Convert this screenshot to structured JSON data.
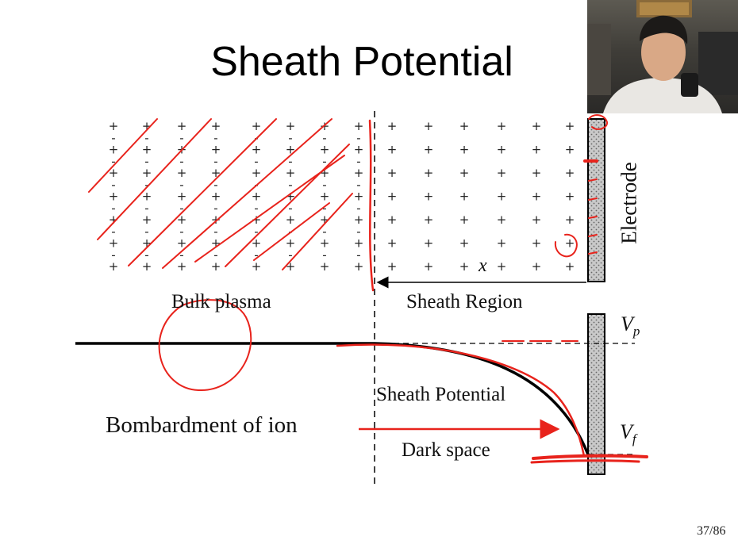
{
  "slide": {
    "title": "Sheath Potential",
    "page_number": "37/86"
  },
  "labels": {
    "electrode": "Electrode",
    "bulk_plasma": "Bulk plasma",
    "sheath_region": "Sheath Region",
    "sheath_potential": "Sheath Potential",
    "dark_space": "Dark space",
    "bombardment": "Bombardment of ion",
    "distance_var": "x",
    "vp": {
      "base": "V",
      "sub": "p"
    },
    "vf": {
      "base": "V",
      "sub": "f"
    }
  },
  "charges": {
    "plus_glyph": "+",
    "minus_glyph": "-",
    "plasma_columns": 8,
    "sheath_columns": 6,
    "rows": 7
  },
  "colors": {
    "ink": "#000000",
    "annotation": "#e8231c",
    "electrode_fill": "#bdbdbd"
  },
  "webcam": {
    "description_icon": "presenter-video-icon"
  }
}
